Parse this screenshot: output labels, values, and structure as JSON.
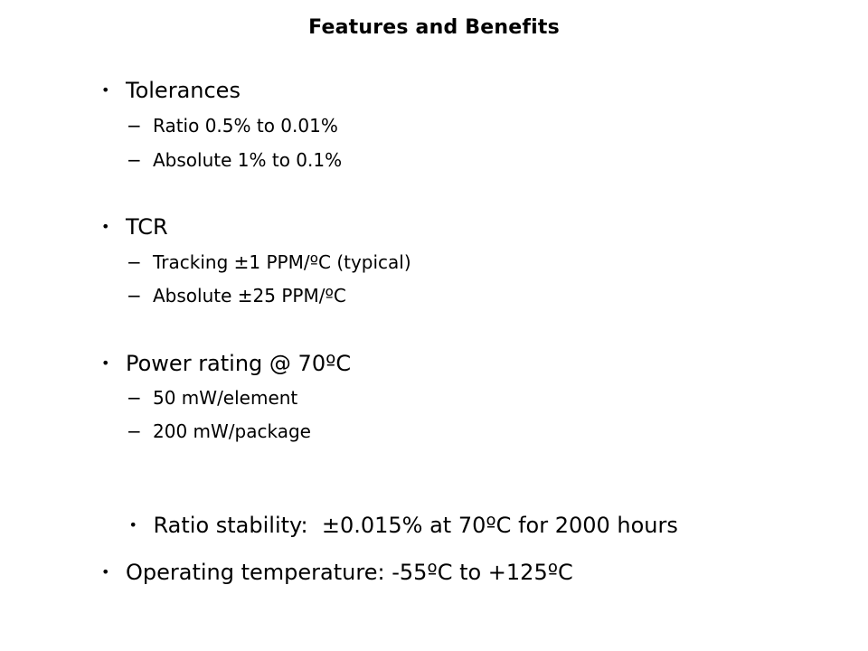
{
  "slide": {
    "title": "Features and Benefits",
    "bullet_glyph": "•",
    "dash_glyph": "−",
    "items": [
      {
        "label": "Tolerances",
        "subitems": [
          "Ratio 0.5% to 0.01%",
          "Absolute 1% to 0.1%"
        ]
      },
      {
        "label": "TCR",
        "subitems": [
          "Tracking ±1 PPM/ºC (typical)",
          "Absolute ±25 PPM/ºC"
        ]
      },
      {
        "label": "Power rating @ 70ºC",
        "subitems": [
          "50 mW/element",
          "200 mW/package"
        ]
      },
      {
        "label": "Ratio stability:  ±0.015% at 70ºC for 2000 hours",
        "subitems": []
      },
      {
        "label": "Operating temperature: -55ºC to +125ºC",
        "subitems": []
      }
    ]
  }
}
